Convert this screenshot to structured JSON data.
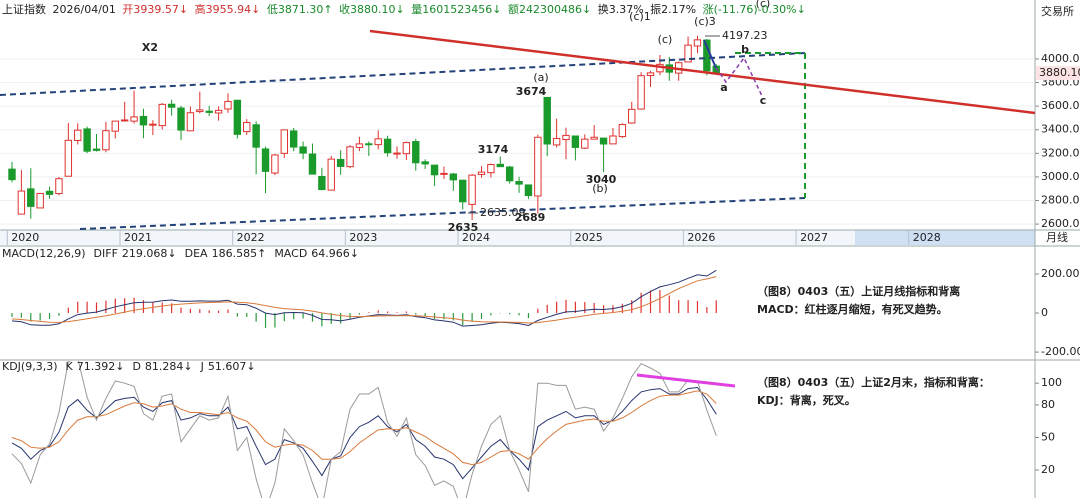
{
  "header": [
    "上证指数",
    "2026/04/01",
    "开3939.57↓",
    "高3955.94↓",
    "低3871.30↑",
    "收3880.10↓",
    "量1601523456↓",
    "额242300486↓",
    "换3.37%",
    "振2.17%",
    "涨(-11.76)-0.30%↓"
  ],
  "chart_data": [
    {
      "type": "candlestick",
      "axis_label": "交易所",
      "x_unit_label": "月线",
      "xticks": [
        2020,
        2021,
        2022,
        2023,
        2024,
        2025,
        2026,
        2027,
        2028
      ],
      "open": [
        3066,
        2685,
        2899,
        2737,
        2878,
        2859,
        3006,
        3309,
        3407,
        3236,
        3230,
        3388,
        3475,
        3473,
        3513,
        3442,
        3435,
        3616,
        3584,
        3391,
        3554,
        3557,
        3542,
        3576,
        3650,
        3384,
        3442,
        3237,
        3033,
        3200,
        3390,
        3254,
        3194,
        3004,
        2888,
        3148,
        3087,
        3250,
        3281,
        3274,
        3320,
        3201,
        3197,
        3300,
        3128,
        3100,
        3023,
        3025,
        2972,
        2767,
        3021,
        3036,
        3107,
        3084,
        2961,
        2932,
        2838,
        3674,
        3271,
        3317,
        3347,
        3244,
        3320,
        3329,
        3280,
        3342,
        3457,
        3575,
        3860,
        3891,
        3950,
        3880,
        3975,
        4110,
        4160,
        3939.57
      ],
      "high": [
        3127,
        3058,
        3074,
        2861,
        2917,
        3000,
        3458,
        3454,
        3426,
        3364,
        3466,
        3474,
        3637,
        3732,
        3578,
        3481,
        3627,
        3654,
        3602,
        3597,
        3723,
        3603,
        3598,
        3709,
        3651,
        3490,
        3471,
        3257,
        3195,
        3400,
        3415,
        3300,
        3283,
        3078,
        3178,
        3226,
        3270,
        3340,
        3301,
        3395,
        3349,
        3259,
        3300,
        3323,
        3149,
        3103,
        3088,
        3034,
        2976,
        3025,
        3091,
        3113,
        3174,
        3092,
        3001,
        2935,
        3358,
        3674,
        3494,
        3418,
        3351,
        3361,
        3440,
        3330,
        3415,
        3455,
        3636,
        3888,
        3899,
        4034,
        4017,
        3980,
        4190,
        4197.23,
        4170,
        3955.94
      ],
      "low": [
        2955,
        2685,
        2646,
        2735,
        2814,
        2844,
        3006,
        3275,
        3202,
        3215,
        3209,
        3326,
        3469,
        3452,
        3328,
        3355,
        3402,
        3520,
        3313,
        3388,
        3539,
        3515,
        3477,
        3543,
        3326,
        3356,
        3023,
        2863,
        3016,
        3160,
        3218,
        3150,
        3021,
        2886,
        2886,
        3017,
        3074,
        3219,
        3178,
        3233,
        3172,
        3153,
        3143,
        3053,
        3068,
        2923,
        2983,
        2882,
        2724,
        2635,
        2993,
        2995,
        3087,
        2944,
        2865,
        2815,
        2689,
        3176,
        3249,
        3150,
        3140,
        3235,
        3320,
        3040,
        3280,
        3330,
        3451,
        3575,
        3762,
        3862,
        3815,
        3815,
        3975,
        4050,
        3860,
        3871.3
      ],
      "close": [
        2977,
        2880,
        2750,
        2860,
        2852,
        2985,
        3310,
        3396,
        3218,
        3225,
        3392,
        3473,
        3483,
        3509,
        3441,
        3447,
        3615,
        3591,
        3397,
        3544,
        3568,
        3547,
        3564,
        3640,
        3361,
        3462,
        3252,
        3047,
        3186,
        3399,
        3253,
        3202,
        3024,
        2893,
        3151,
        3089,
        3255,
        3280,
        3273,
        3323,
        3205,
        3202,
        3291,
        3120,
        3110,
        3018,
        3030,
        2975,
        2789,
        3015,
        3041,
        3105,
        3087,
        2967,
        2939,
        2842,
        3336,
        3279,
        3326,
        3352,
        3250,
        3320,
        3336,
        3279,
        3347,
        3444,
        3573,
        3858,
        3882,
        3954,
        3888,
        3968,
        4117,
        4162,
        3900,
        3880.1
      ],
      "up_color": "#e0322f",
      "down_color": "#1a9a2b",
      "ylim": [
        2550,
        4432
      ],
      "yticks": [
        {
          "value": 4000,
          "label": "4000.00"
        },
        {
          "value": 3800,
          "label": "3800.00"
        },
        {
          "value": 3600,
          "label": "3600.00"
        },
        {
          "value": 3400,
          "label": "3400.00"
        },
        {
          "value": 3200,
          "label": "3200.00"
        },
        {
          "value": 3000,
          "label": "3000.00"
        },
        {
          "value": 2800,
          "label": "2800.00"
        },
        {
          "value": 2600,
          "label": "2600.00"
        }
      ],
      "last_price": {
        "value": 3880.1,
        "label": "3880.10"
      },
      "grid": true,
      "annotations": [
        "X2",
        "(a)",
        "3674",
        "3174",
        "3040",
        "(b)",
        "2635",
        "2635.09",
        "2689",
        "(c)1",
        "(c)",
        "(c)3",
        "4197.23",
        "b",
        "a",
        "c",
        "(c)"
      ]
    },
    {
      "type": "macd",
      "title": "MACD(12,26,9)",
      "ylim": [
        -220,
        261.5
      ],
      "yticks": [
        {
          "value": 200,
          "label": "200.00"
        },
        0,
        {
          "value": -200,
          "label": "-200.00"
        }
      ],
      "series": [
        {
          "name": "DIFF",
          "legend_label": "219.068↓",
          "color": "#26346e",
          "style": "line",
          "values": [
            -40,
            -45,
            -60,
            -62,
            -62,
            -55,
            -30,
            -8,
            0,
            5,
            18,
            32,
            43,
            53,
            55,
            56,
            63,
            67,
            60,
            60,
            62,
            61,
            61,
            66,
            46,
            43,
            25,
            0,
            -8,
            2,
            3,
            2,
            -12,
            -33,
            -34,
            -40,
            -32,
            -22,
            -15,
            -8,
            -10,
            -12,
            -9,
            -18,
            -24,
            -35,
            -40,
            -47,
            -67,
            -64,
            -60,
            -52,
            -47,
            -50,
            -54,
            -64,
            -38,
            -22,
            -7,
            6,
            8,
            14,
            19,
            18,
            23,
            33,
            50,
            84,
            110,
            134,
            145,
            158,
            178,
            196,
            190,
            219.068
          ]
        },
        {
          "name": "DEA",
          "legend_label": "186.585↑",
          "color": "#d9793a",
          "style": "line",
          "values": [
            -30,
            -33,
            -38,
            -43,
            -47,
            -48,
            -44,
            -37,
            -29,
            -22,
            -14,
            -5,
            5,
            14,
            22,
            29,
            36,
            42,
            46,
            49,
            52,
            54,
            55,
            57,
            55,
            53,
            47,
            38,
            29,
            23,
            19,
            16,
            10,
            1,
            -6,
            -13,
            -17,
            -18,
            -17,
            -15,
            -14,
            -14,
            -13,
            -14,
            -16,
            -20,
            -24,
            -28,
            -36,
            -41,
            -45,
            -46,
            -46,
            -47,
            -48,
            -51,
            -49,
            -43,
            -36,
            -28,
            -21,
            -14,
            -7,
            -2,
            3,
            9,
            17,
            32,
            52,
            75,
            100,
            125,
            145,
            165,
            175,
            186.585
          ]
        },
        {
          "name": "MACD",
          "legend_label": "64.966↓",
          "color": "#e0322f",
          "negative_color": "#2a9a3a",
          "style": "bar",
          "values": [
            -20,
            -24,
            -44,
            -38,
            -30,
            -14,
            28,
            58,
            58,
            54,
            64,
            74,
            76,
            78,
            66,
            54,
            54,
            50,
            28,
            22,
            20,
            14,
            12,
            18,
            -18,
            -20,
            -44,
            -76,
            -74,
            -42,
            -32,
            -28,
            -44,
            -68,
            -56,
            -54,
            -30,
            -8,
            4,
            14,
            8,
            4,
            8,
            -8,
            -16,
            -30,
            -32,
            -38,
            -62,
            -46,
            -30,
            -12,
            -2,
            -6,
            -12,
            -26,
            22,
            42,
            58,
            68,
            58,
            56,
            52,
            40,
            40,
            48,
            66,
            104,
            116,
            118,
            90,
            66,
            66,
            62,
            30,
            64.966
          ]
        }
      ],
      "notes": [
        "（图8）0403（五）上证月线指标和背离",
        "MACD：红柱逐月缩短，有死叉趋势。"
      ]
    },
    {
      "type": "kdj",
      "title": "KDJ(9,3,3)",
      "ylim": [
        -3.9,
        110.3
      ],
      "yticks": [
        100,
        80,
        50,
        20
      ],
      "series": [
        {
          "name": "K",
          "legend_label": "71.392↓",
          "color": "#26346e",
          "style": "line",
          "values": [
            45,
            40,
            30,
            38,
            42,
            55,
            78,
            85,
            75,
            68,
            76,
            84,
            86,
            87,
            78,
            74,
            82,
            84,
            66,
            68,
            72,
            70,
            70,
            78,
            58,
            60,
            42,
            25,
            30,
            48,
            45,
            40,
            28,
            15,
            30,
            33,
            50,
            60,
            64,
            70,
            60,
            55,
            62,
            48,
            42,
            32,
            30,
            25,
            12,
            22,
            32,
            42,
            48,
            38,
            30,
            20,
            60,
            66,
            70,
            74,
            68,
            70,
            70,
            62,
            66,
            74,
            84,
            92,
            94,
            95,
            90,
            90,
            95,
            96,
            85,
            71.392
          ]
        },
        {
          "name": "D",
          "legend_label": "81.284↓",
          "color": "#d9793a",
          "style": "line",
          "values": [
            50,
            47,
            41,
            40,
            41,
            46,
            57,
            66,
            69,
            69,
            71,
            75,
            79,
            82,
            81,
            78,
            79,
            81,
            76,
            73,
            73,
            72,
            71,
            73,
            68,
            65,
            57,
            46,
            41,
            43,
            44,
            43,
            38,
            30,
            30,
            31,
            37,
            45,
            51,
            57,
            58,
            57,
            59,
            55,
            51,
            45,
            40,
            35,
            27,
            25,
            27,
            32,
            37,
            38,
            35,
            30,
            40,
            49,
            56,
            62,
            64,
            66,
            67,
            65,
            65,
            68,
            73,
            79,
            84,
            88,
            89,
            89,
            91,
            93,
            90,
            81.284
          ]
        },
        {
          "name": "J",
          "legend_label": "51.607↓",
          "color": "#9a9a9a",
          "style": "line",
          "values": [
            35,
            26,
            8,
            34,
            44,
            73,
            120,
            123,
            87,
            66,
            86,
            102,
            100,
            97,
            72,
            66,
            88,
            90,
            46,
            58,
            70,
            66,
            68,
            88,
            38,
            50,
            12,
            -17,
            8,
            58,
            47,
            34,
            8,
            -15,
            30,
            37,
            76,
            90,
            90,
            96,
            64,
            51,
            68,
            34,
            24,
            6,
            10,
            5,
            -18,
            16,
            42,
            62,
            70,
            38,
            20,
            0,
            100,
            100,
            98,
            98,
            76,
            78,
            76,
            56,
            68,
            86,
            106,
            118,
            114,
            109,
            92,
            92,
            103,
            102,
            75,
            51.607
          ]
        }
      ],
      "notes": [
        "（图8）0403（五）上证2月末，指标和背离：",
        "KDJ：背离，死叉。"
      ]
    }
  ]
}
